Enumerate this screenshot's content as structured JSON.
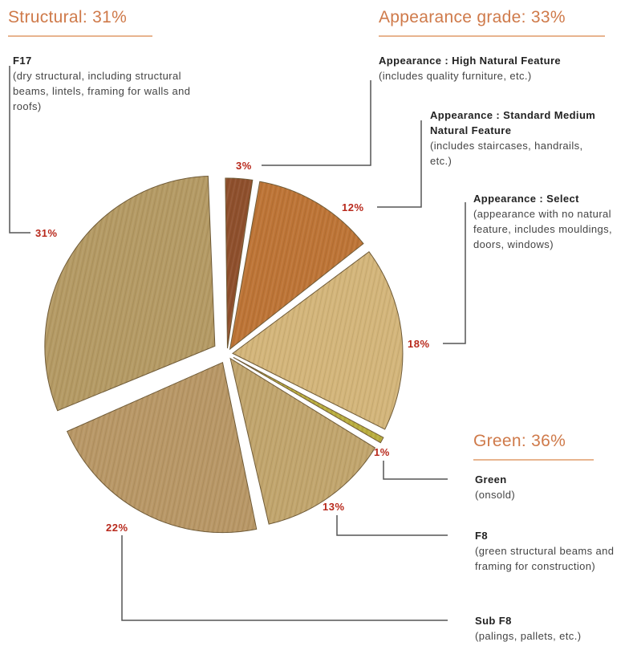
{
  "chart_data": {
    "type": "pie",
    "groups": [
      {
        "title": "Structural: 31%",
        "slices": [
          0
        ]
      },
      {
        "title": "Appearance grade: 33%",
        "slices": [
          1,
          2,
          3
        ]
      },
      {
        "title": "Green: 36%",
        "slices": [
          4,
          5,
          6
        ]
      }
    ],
    "slices": [
      {
        "label": "31%",
        "value": 31,
        "name": "F17",
        "detail": "(dry structural, including structural beams, lintels, framing for walls and roofs)",
        "color": "#b49a64"
      },
      {
        "label": "3%",
        "value": 3,
        "name": "Appearance : High Natural Feature",
        "detail": "(includes quality furniture, etc.)",
        "color": "#8e4f2c"
      },
      {
        "label": "12%",
        "value": 12,
        "name": "Appearance : Standard Medium Natural Feature",
        "detail": "(includes staircases, handrails, etc.)",
        "color": "#bd7436"
      },
      {
        "label": "18%",
        "value": 18,
        "name": "Appearance : Select",
        "detail": "(appearance with no natural feature, includes mouldings, doors, windows)",
        "color": "#d3b57a"
      },
      {
        "label": "1%",
        "value": 1,
        "name": "Green",
        "detail": "(onsold)",
        "color": "#b9ad3e"
      },
      {
        "label": "13%",
        "value": 13,
        "name": "F8",
        "detail": "(green structural beams and framing for construction)",
        "color": "#c1a56d"
      },
      {
        "label": "22%",
        "value": 22,
        "name": "Sub F8",
        "detail": "(palings, pallets, etc.)",
        "color": "#b89766"
      }
    ]
  },
  "colors": {
    "accent_title": "#cf7a4a",
    "percent_label": "#b8291c",
    "leader_line": "#555555"
  }
}
